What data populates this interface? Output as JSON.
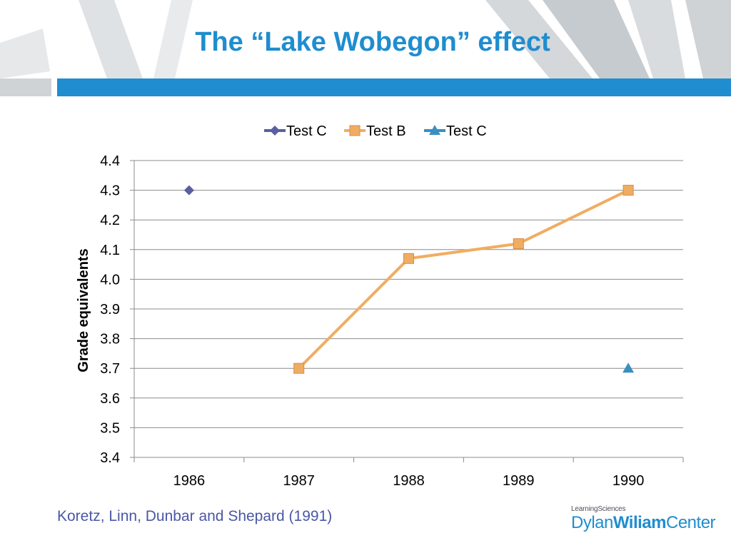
{
  "slide": {
    "title": "The “Lake Wobegon” effect",
    "source": "Koretz, Linn, Dunbar and Shepard (1991)",
    "logo_small": "LearningSciences",
    "logo_part1": "Dylan",
    "logo_part2": "Wiliam",
    "logo_part3": "Center",
    "accent_color": "#1f8dcf"
  },
  "chart_data": {
    "type": "line",
    "categories": [
      "1986",
      "1987",
      "1988",
      "1989",
      "1990"
    ],
    "ylabel": "Grade equivalents",
    "xlabel": "",
    "ylim": [
      3.4,
      4.4
    ],
    "yticks": [
      "3.4",
      "3.5",
      "3.6",
      "3.7",
      "3.8",
      "3.9",
      "4.0",
      "4.1",
      "4.2",
      "4.3",
      "4.4"
    ],
    "grid": true,
    "legend": "top",
    "series": [
      {
        "name": "Test C",
        "values": [
          4.3,
          null,
          null,
          null,
          null
        ],
        "color": "#5a5fa0",
        "marker": "diamond",
        "line": true
      },
      {
        "name": "Test B",
        "values": [
          null,
          3.7,
          4.07,
          4.12,
          4.3
        ],
        "color": "#f0ad62",
        "marker": "square",
        "line": true
      },
      {
        "name": "Test C",
        "values": [
          null,
          null,
          null,
          null,
          3.7
        ],
        "color": "#3a8fc2",
        "marker": "triangle",
        "line": true
      }
    ]
  }
}
